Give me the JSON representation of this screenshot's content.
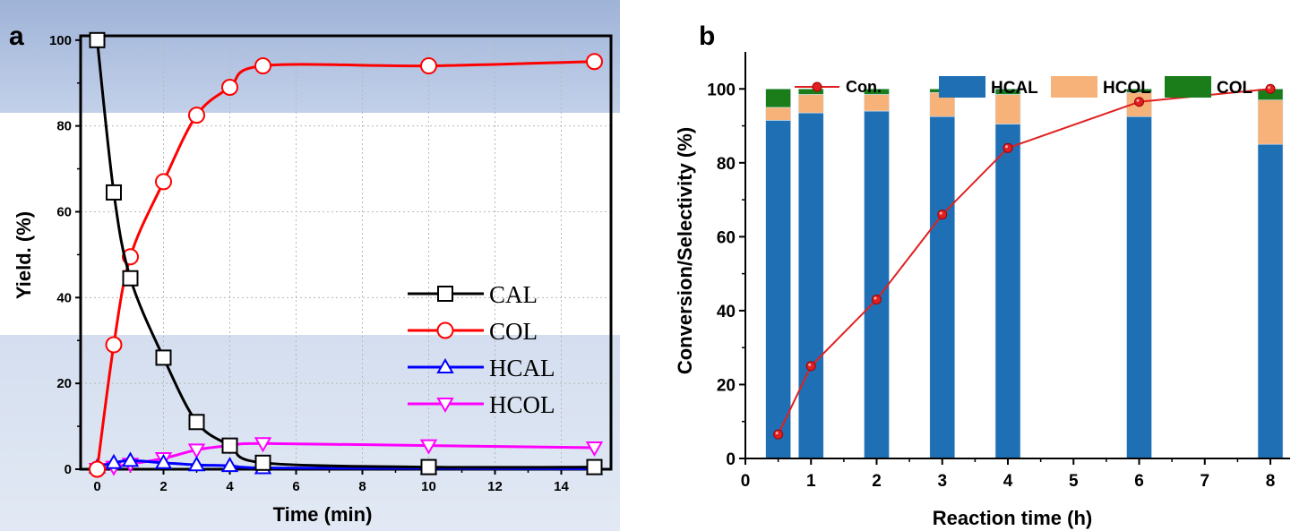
{
  "panels": {
    "a": {
      "label": "a"
    },
    "b": {
      "label": "b"
    }
  },
  "chart_data": [
    {
      "panel": "a",
      "type": "line",
      "xlabel": "Time (min)",
      "ylabel": "Yield. (%)",
      "xlim": [
        -0.5,
        15.5
      ],
      "ylim": [
        0,
        101
      ],
      "xticks": [
        0,
        2,
        4,
        6,
        8,
        10,
        12,
        14
      ],
      "yticks": [
        0,
        20,
        40,
        60,
        80,
        100
      ],
      "grid": true,
      "legend_position": "bottom-right",
      "series": [
        {
          "name": "CAL",
          "marker": "square",
          "color": "#000000",
          "x": [
            0,
            0.5,
            1,
            2,
            3,
            4,
            5,
            10,
            15
          ],
          "y": [
            100,
            64.5,
            44.5,
            26,
            11,
            5.5,
            1.5,
            0.5,
            0.5
          ]
        },
        {
          "name": "COL",
          "marker": "circle",
          "color": "#ff0000",
          "x": [
            0,
            0.5,
            1,
            2,
            3,
            4,
            5,
            10,
            15
          ],
          "y": [
            0,
            29,
            49.5,
            67,
            82.5,
            89,
            94,
            94,
            95
          ]
        },
        {
          "name": "HCAL",
          "marker": "triangle-up",
          "color": "#0000ff",
          "x": [
            0,
            0.5,
            1,
            2,
            3,
            4,
            5,
            10,
            15
          ],
          "y": [
            0.5,
            1.5,
            2,
            1.5,
            1,
            0.8,
            0.3,
            0.2,
            0.1
          ]
        },
        {
          "name": "HCOL",
          "marker": "triangle-down",
          "color": "#ff00ff",
          "x": [
            0,
            0.5,
            1,
            2,
            3,
            4,
            5,
            10,
            15
          ],
          "y": [
            0,
            0.5,
            1.2,
            2.5,
            4.5,
            5.5,
            6,
            5.5,
            5
          ]
        }
      ]
    },
    {
      "panel": "b",
      "type": "bar",
      "stacked": true,
      "xlabel": "Reaction time (h)",
      "ylabel": "Conversion/Selectivity (%)",
      "xlim": [
        0,
        8.3
      ],
      "ylim": [
        0,
        110
      ],
      "xticks": [
        0,
        1,
        2,
        3,
        4,
        5,
        6,
        7,
        8
      ],
      "yticks": [
        0,
        20,
        40,
        60,
        80,
        100
      ],
      "legend_position": "top",
      "x": [
        0.5,
        1,
        2,
        3,
        4,
        6,
        8
      ],
      "series": [
        {
          "name": "HCAL",
          "color": "#1f6fb4",
          "values": [
            91.5,
            93.5,
            94,
            92.5,
            90.5,
            92.5,
            85
          ]
        },
        {
          "name": "HCOL",
          "color": "#f7b27a",
          "values": [
            3.5,
            5,
            4.5,
            6.5,
            8,
            6.5,
            12
          ]
        },
        {
          "name": "COL",
          "color": "#1a7d1a",
          "values": [
            5,
            1.5,
            1.5,
            1,
            1.5,
            1,
            3
          ]
        }
      ],
      "line_series": {
        "name": "Con.",
        "color": "#e02020",
        "x": [
          0.5,
          1,
          2,
          3,
          4,
          6,
          8
        ],
        "y": [
          6.5,
          25,
          43,
          66,
          84,
          96.5,
          100
        ]
      }
    }
  ]
}
